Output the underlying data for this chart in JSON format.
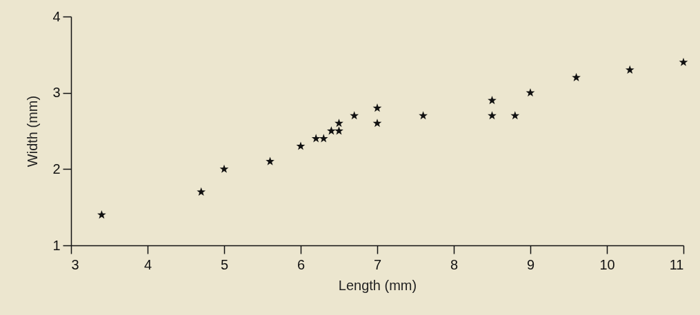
{
  "chart_data": {
    "type": "scatter",
    "xlabel": "Length (mm)",
    "ylabel": "Width (mm)",
    "x": [
      3.4,
      4.7,
      5.0,
      5.6,
      6.0,
      6.2,
      6.3,
      6.4,
      6.5,
      6.5,
      6.7,
      7.0,
      7.0,
      7.6,
      8.5,
      8.5,
      8.8,
      9.0,
      9.6,
      10.3,
      11.0
    ],
    "values": [
      1.4,
      1.7,
      2.0,
      2.1,
      2.3,
      2.4,
      2.4,
      2.5,
      2.5,
      2.6,
      2.7,
      2.8,
      2.6,
      2.7,
      2.9,
      2.7,
      2.7,
      3.0,
      3.2,
      3.3,
      3.4
    ],
    "color": "#111111",
    "marker": "star",
    "xlim": [
      3,
      11
    ],
    "ylim": [
      1,
      4
    ],
    "xticks": [
      3,
      4,
      5,
      6,
      7,
      8,
      9,
      10,
      11
    ],
    "yticks": [
      1,
      2,
      3,
      4
    ],
    "grid": false
  }
}
